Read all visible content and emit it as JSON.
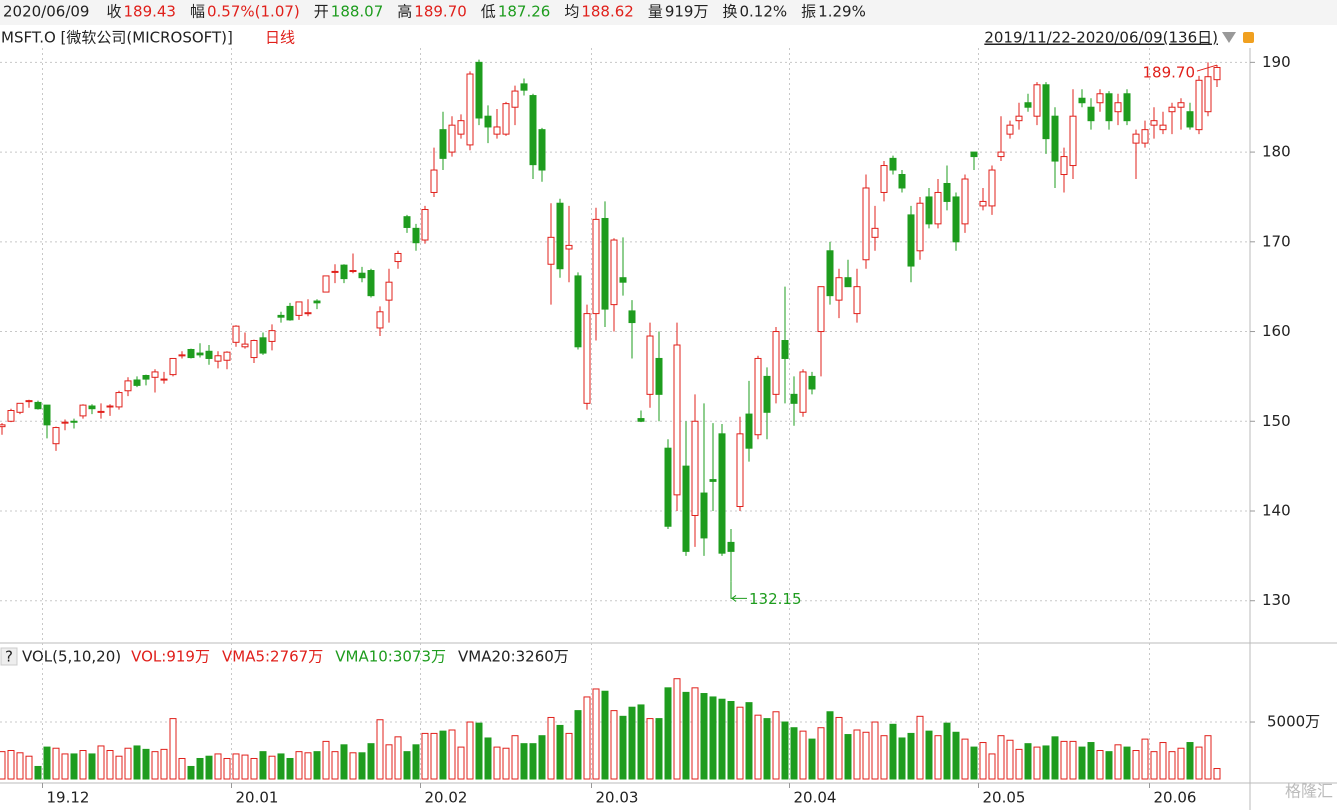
{
  "header": {
    "date": "2020/06/09",
    "items": [
      {
        "label": "收",
        "value": "189.43",
        "color": "#e0201b"
      },
      {
        "label": "幅",
        "value": "0.57%(1.07)",
        "color": "#e0201b"
      },
      {
        "label": "开",
        "value": "188.07",
        "color": "#1e9c1e"
      },
      {
        "label": "高",
        "value": "189.70",
        "color": "#e0201b"
      },
      {
        "label": "低",
        "value": "187.26",
        "color": "#1e9c1e"
      },
      {
        "label": "均",
        "value": "188.62",
        "color": "#e0201b"
      },
      {
        "label": "量",
        "value": "919万",
        "color": "#222222"
      },
      {
        "label": "换",
        "value": "0.12%",
        "color": "#222222"
      },
      {
        "label": "振",
        "value": "1.29%",
        "color": "#222222"
      }
    ]
  },
  "chart_data": {
    "type": "candlestick",
    "title": "MSFT.O [微软公司(MICROSOFT)]",
    "period": "日线",
    "range": "2019/11/22-2020/06/09(136日)",
    "up_color": "#e0201b",
    "down_color": "#1e9c1e",
    "ylim": [
      125.4,
      191.6
    ],
    "yticks": [
      130,
      140,
      150,
      160,
      170,
      180,
      190
    ],
    "grid": true,
    "categories": [
      null,
      null,
      null,
      null,
      null,
      "19.12",
      null,
      null,
      null,
      null,
      null,
      null,
      null,
      null,
      null,
      null,
      null,
      null,
      null,
      null,
      null,
      null,
      null,
      null,
      null,
      null,
      "20.01",
      null,
      null,
      null,
      null,
      null,
      null,
      null,
      null,
      null,
      null,
      null,
      null,
      null,
      null,
      null,
      null,
      null,
      null,
      null,
      null,
      "20.02",
      null,
      null,
      null,
      null,
      null,
      null,
      null,
      null,
      null,
      null,
      null,
      null,
      null,
      null,
      null,
      null,
      null,
      null,
      "20.03",
      null,
      null,
      null,
      null,
      null,
      null,
      null,
      null,
      null,
      null,
      null,
      null,
      null,
      null,
      null,
      null,
      null,
      null,
      null,
      null,
      null,
      "20.04",
      null,
      null,
      null,
      null,
      null,
      null,
      null,
      null,
      null,
      null,
      null,
      null,
      null,
      null,
      null,
      null,
      null,
      null,
      null,
      null,
      "20.05",
      null,
      null,
      null,
      null,
      null,
      null,
      null,
      null,
      null,
      null,
      null,
      null,
      null,
      null,
      null,
      null,
      null,
      null,
      "20.06",
      null,
      null,
      null,
      null,
      null,
      null
    ],
    "ohlc": [
      [
        149.4,
        149.8,
        148.5,
        149.6
      ],
      [
        150.0,
        151.4,
        149.9,
        151.2
      ],
      [
        151.0,
        152.0,
        150.8,
        152.0
      ],
      [
        152.3,
        152.4,
        151.5,
        152.3
      ],
      [
        152.1,
        152.3,
        151.3,
        151.4
      ],
      [
        151.8,
        151.8,
        148.1,
        149.6
      ],
      [
        147.5,
        149.4,
        146.7,
        149.3
      ],
      [
        149.9,
        150.2,
        149.0,
        149.9
      ],
      [
        150.0,
        150.3,
        149.2,
        149.9
      ],
      [
        150.6,
        151.9,
        150.3,
        151.8
      ],
      [
        151.7,
        151.9,
        150.8,
        151.4
      ],
      [
        151.1,
        152.0,
        150.3,
        151.1
      ],
      [
        151.6,
        151.9,
        150.6,
        151.7
      ],
      [
        151.6,
        153.4,
        151.3,
        153.2
      ],
      [
        153.4,
        154.9,
        152.8,
        154.5
      ],
      [
        154.6,
        155.0,
        153.8,
        154.0
      ],
      [
        155.1,
        155.2,
        154.0,
        154.7
      ],
      [
        154.9,
        155.8,
        153.2,
        155.5
      ],
      [
        154.7,
        155.5,
        154.2,
        154.7
      ],
      [
        155.2,
        157.0,
        155.0,
        157.0
      ],
      [
        157.4,
        157.8,
        157.0,
        157.4
      ],
      [
        158.0,
        158.1,
        157.0,
        157.1
      ],
      [
        157.6,
        158.7,
        157.1,
        157.4
      ],
      [
        157.8,
        158.5,
        156.3,
        157.0
      ],
      [
        156.7,
        157.8,
        155.9,
        157.3
      ],
      [
        156.8,
        157.8,
        155.8,
        157.7
      ],
      [
        158.8,
        160.7,
        158.3,
        160.6
      ],
      [
        158.3,
        159.9,
        158.1,
        158.6
      ],
      [
        157.1,
        159.1,
        156.5,
        159.0
      ],
      [
        159.3,
        159.9,
        157.4,
        157.6
      ],
      [
        158.9,
        160.8,
        157.9,
        160.1
      ],
      [
        161.8,
        162.2,
        161.0,
        161.6
      ],
      [
        162.8,
        163.2,
        161.2,
        161.3
      ],
      [
        161.8,
        163.3,
        161.3,
        163.3
      ],
      [
        162.1,
        163.6,
        161.7,
        162.1
      ],
      [
        163.4,
        163.6,
        162.5,
        163.2
      ],
      [
        164.4,
        166.2,
        164.4,
        166.2
      ],
      [
        166.7,
        167.5,
        165.4,
        166.7
      ],
      [
        167.4,
        167.5,
        165.4,
        165.9
      ],
      [
        166.7,
        168.7,
        166.5,
        166.8
      ],
      [
        166.5,
        167.2,
        165.5,
        166.0
      ],
      [
        166.8,
        167.0,
        163.8,
        164.0
      ],
      [
        160.4,
        162.8,
        159.5,
        162.2
      ],
      [
        163.5,
        167.0,
        161.0,
        165.5
      ],
      [
        167.8,
        169.0,
        167.0,
        168.7
      ],
      [
        172.8,
        173.0,
        171.0,
        171.6
      ],
      [
        171.5,
        172.0,
        169.0,
        169.9
      ],
      [
        170.2,
        174.0,
        169.8,
        173.6
      ],
      [
        175.5,
        180.5,
        175.0,
        178.0
      ],
      [
        182.5,
        184.5,
        178.0,
        179.3
      ],
      [
        180.0,
        184.0,
        179.5,
        183.0
      ],
      [
        182.0,
        184.2,
        181.5,
        183.5
      ],
      [
        180.8,
        189.0,
        180.2,
        188.7
      ],
      [
        190.0,
        190.3,
        183.0,
        183.8
      ],
      [
        184.0,
        185.2,
        181.0,
        182.8
      ],
      [
        182.0,
        184.8,
        181.5,
        182.8
      ],
      [
        182.0,
        185.6,
        181.8,
        185.4
      ],
      [
        185.0,
        187.4,
        183.0,
        186.8
      ],
      [
        187.6,
        188.2,
        186.3,
        186.9
      ],
      [
        186.3,
        186.5,
        177.0,
        178.6
      ],
      [
        182.5,
        182.7,
        176.7,
        178.0
      ],
      [
        167.5,
        174.3,
        163.0,
        170.5
      ],
      [
        174.3,
        174.8,
        166.0,
        167.0
      ],
      [
        169.2,
        174.0,
        165.5,
        169.6
      ],
      [
        166.2,
        166.6,
        158.0,
        158.3
      ],
      [
        152.0,
        163.0,
        151.3,
        162.0
      ],
      [
        162.0,
        173.8,
        159.0,
        172.5
      ],
      [
        172.6,
        174.5,
        160.5,
        162.5
      ],
      [
        163.0,
        170.4,
        160.0,
        170.2
      ],
      [
        166.0,
        170.5,
        164.0,
        165.5
      ],
      [
        162.3,
        163.5,
        157.0,
        161.0
      ],
      [
        150.3,
        151.2,
        149.9,
        150.0
      ],
      [
        153.0,
        161.0,
        151.5,
        159.5
      ],
      [
        157.0,
        160.0,
        150.0,
        153.0
      ],
      [
        147.0,
        148.0,
        138.0,
        138.3
      ],
      [
        141.8,
        161.0,
        140.0,
        158.5
      ],
      [
        145.0,
        150.0,
        135.0,
        135.5
      ],
      [
        139.5,
        153.0,
        136.0,
        150.0
      ],
      [
        142.0,
        152.0,
        135.0,
        137.0
      ],
      [
        143.5,
        149.8,
        140.0,
        143.3
      ],
      [
        148.6,
        149.7,
        135.0,
        135.3
      ],
      [
        136.5,
        138.0,
        132.15,
        135.5
      ],
      [
        140.5,
        150.5,
        140.0,
        148.6
      ],
      [
        150.8,
        154.5,
        145.5,
        147.0
      ],
      [
        148.5,
        157.3,
        148.0,
        157.0
      ],
      [
        155.0,
        156.0,
        148.0,
        151.0
      ],
      [
        153.0,
        160.5,
        152.0,
        160.0
      ],
      [
        159.0,
        165.0,
        152.0,
        157.0
      ],
      [
        153.0,
        155.0,
        149.5,
        152.0
      ],
      [
        151.0,
        155.8,
        150.5,
        155.5
      ],
      [
        155.0,
        155.5,
        153.0,
        153.6
      ],
      [
        160.0,
        165.0,
        155.0,
        165.0
      ],
      [
        169.0,
        170.0,
        163.0,
        164.0
      ],
      [
        163.5,
        167.0,
        161.5,
        166.0
      ],
      [
        166.0,
        168.0,
        165.0,
        165.0
      ],
      [
        162.0,
        167.0,
        161.0,
        165.0
      ],
      [
        168.0,
        177.5,
        167.0,
        176.0
      ],
      [
        170.5,
        174.0,
        169.0,
        171.5
      ],
      [
        175.5,
        179.0,
        174.5,
        178.5
      ],
      [
        179.3,
        179.6,
        177.5,
        178.0
      ],
      [
        177.5,
        178.0,
        175.5,
        176.0
      ],
      [
        173.0,
        174.0,
        165.5,
        167.3
      ],
      [
        169.0,
        175.0,
        168.0,
        174.3
      ],
      [
        175.0,
        176.0,
        171.5,
        172.0
      ],
      [
        172.0,
        177.0,
        171.5,
        175.5
      ],
      [
        176.5,
        178.5,
        173.5,
        174.5
      ],
      [
        175.0,
        175.5,
        169.0,
        170.0
      ],
      [
        172.0,
        177.5,
        171.0,
        177.0
      ],
      [
        180.0,
        180.0,
        178.0,
        179.5
      ],
      [
        174.0,
        176.0,
        173.5,
        174.5
      ],
      [
        174.0,
        178.5,
        173.0,
        178.0
      ],
      [
        179.5,
        184.0,
        179.0,
        180.0
      ],
      [
        182.0,
        183.5,
        181.5,
        183.0
      ],
      [
        183.5,
        185.5,
        182.5,
        184.0
      ],
      [
        185.5,
        186.5,
        184.5,
        185.0
      ],
      [
        184.0,
        187.8,
        183.0,
        187.5
      ],
      [
        187.5,
        187.8,
        179.8,
        181.5
      ],
      [
        184.0,
        185.0,
        176.0,
        179.0
      ],
      [
        177.5,
        180.5,
        175.5,
        179.5
      ],
      [
        178.5,
        187.0,
        177.0,
        184.0
      ],
      [
        186.0,
        187.0,
        185.0,
        185.5
      ],
      [
        185.0,
        186.0,
        182.5,
        183.5
      ],
      [
        185.5,
        187.0,
        184.5,
        186.5
      ],
      [
        186.5,
        186.8,
        182.5,
        183.5
      ],
      [
        184.5,
        186.5,
        183.0,
        185.5
      ],
      [
        186.5,
        187.0,
        183.0,
        183.5
      ],
      [
        181.0,
        182.5,
        177.0,
        182.0
      ],
      [
        181.0,
        183.5,
        180.5,
        182.5
      ],
      [
        183.0,
        185.0,
        181.5,
        183.5
      ],
      [
        182.5,
        184.5,
        182.0,
        183.0
      ],
      [
        184.5,
        185.5,
        182.0,
        185.0
      ],
      [
        185.0,
        186.0,
        182.5,
        185.5
      ],
      [
        184.5,
        185.5,
        182.5,
        182.8
      ],
      [
        182.5,
        188.5,
        182.0,
        188.0
      ],
      [
        184.5,
        190.0,
        184.0,
        188.4
      ],
      [
        188.07,
        189.7,
        187.26,
        189.43
      ]
    ],
    "annotations": [
      {
        "label": "189.70",
        "value": 189.7,
        "at": "high",
        "color": "#e0201b"
      },
      {
        "label": "132.15",
        "value": 132.15,
        "at": "low",
        "color": "#1e9c1e"
      }
    ],
    "volume": {
      "help": "?",
      "title": "VOL(5,10,20)",
      "legend": [
        {
          "text": "VOL:919万",
          "color": "#e0201b"
        },
        {
          "text": "VMA5:2767万",
          "color": "#e0201b"
        },
        {
          "text": "VMA10:3073万",
          "color": "#1e9c1e"
        },
        {
          "text": "VMA20:3260万",
          "color": "#222222"
        }
      ],
      "ylim": [
        0,
        9740
      ],
      "yticks": [
        {
          "value": 5000,
          "label": "5000万"
        }
      ],
      "values": [
        2400,
        2500,
        2300,
        2000,
        1100,
        2800,
        2700,
        2200,
        2200,
        2500,
        2200,
        2900,
        2500,
        2000,
        2700,
        2900,
        2600,
        2400,
        2600,
        5300,
        1800,
        1100,
        1800,
        2000,
        2200,
        1800,
        2200,
        2100,
        1800,
        2400,
        2000,
        2200,
        1800,
        2400,
        2300,
        2400,
        3300,
        2400,
        3000,
        2300,
        2300,
        3100,
        5200,
        3000,
        3700,
        2400,
        3000,
        4000,
        4000,
        4200,
        4300,
        2800,
        5000,
        4900,
        3600,
        2800,
        2700,
        3800,
        3100,
        3100,
        3800,
        5400,
        4700,
        4000,
        6000,
        7200,
        7900,
        7700,
        6000,
        5500,
        6300,
        6500,
        5300,
        5300,
        8000,
        8800,
        7600,
        8000,
        7500,
        7200,
        7000,
        6800,
        6300,
        6700,
        5600,
        5300,
        5900,
        5000,
        4500,
        4200,
        3500,
        4500,
        5900,
        5400,
        3900,
        4300,
        4100,
        5000,
        3800,
        4800,
        3600,
        4000,
        5500,
        4200,
        3800,
        4900,
        4100,
        3500,
        2800,
        3200,
        2200,
        3800,
        3400,
        2600,
        3100,
        2800,
        2900,
        3700,
        3300,
        3300,
        2800,
        3200,
        2500,
        2400,
        3000,
        2800,
        2500,
        3500,
        2400,
        3200,
        2400,
        2700,
        3200,
        2800,
        3800,
        919
      ]
    },
    "watermark": "格隆汇"
  }
}
